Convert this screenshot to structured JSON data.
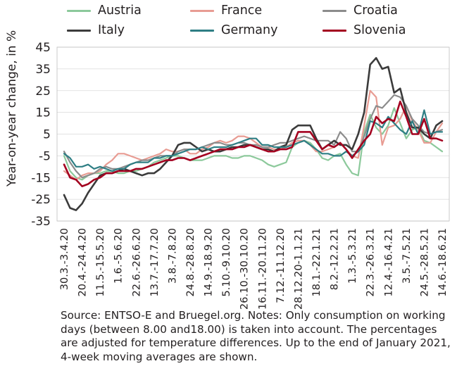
{
  "chart_data": {
    "type": "line",
    "ylabel": "Year-on-year change, in %",
    "ylim": [
      -35,
      45
    ],
    "yticks": [
      45,
      35,
      25,
      15,
      5,
      -5,
      -15,
      -25,
      -35
    ],
    "grid": true,
    "legend_position": "top",
    "categories": [
      "30.3.-3.4.20",
      "6.4.-10.4.20",
      "13.4.-17.4.20",
      "20.4.-24.4.20",
      "27.4.-1.5.20",
      "4.5.-8.5.20",
      "11.5.-15.5.20",
      "18.5.-22.5.20",
      "25.5.-29.5.20",
      "1.6.-5.6.20",
      "8.6.-12.6.20",
      "15.6.-19.6.20",
      "22.6.-26.6.20",
      "29.6.-3.7.20",
      "6.7.-10.7.20",
      "13.7.-17.7.20",
      "20.7.-24.7.20",
      "27.7.-31.7.20",
      "3.8.-7.8.20",
      "10.8.-14.8.20",
      "17.8.-21.8.20",
      "24.8.-28.8.20",
      "31.8.-4.9.20",
      "7.9.-11.9.20",
      "14.9.-18.9.20",
      "21.9.-25.9.20",
      "28.9.-2.10.20",
      "5.10.-9.10.20",
      "12.10.-16.10.20",
      "19.10.-23.10.20",
      "26.10.-30.10.20",
      "2.11.-6.11.20",
      "9.11.-13.11.20",
      "16.11.-20.11.20",
      "23.11.-27.11.20",
      "30.11.-4.12.20",
      "7.12.-11.12.20",
      "14.12.-18.12.20",
      "21.12.-25.12.20",
      "28.12.20-1.1.21",
      "4.1.-8.1.21",
      "11.1.-15.1.21",
      "18.1.-22.1.21",
      "25.1.-29.1.21",
      "1.2.-5.2.21",
      "8.2.-12.2.21",
      "15.2.-19.2.21",
      "22.2.-26.2.21",
      "1.3.-5.3.21",
      "8.3.-12.3.21",
      "15.3.-19.3.21",
      "22.3.-26.3.21",
      "29.3.-2.4.21",
      "5.4.-9.4.21",
      "12.4.-16.4.21",
      "19.4.-23.4.21",
      "26.4.-30.4.21",
      "3.5.-7.5.21",
      "10.5.-14.5.21",
      "17.5.-21.5.21",
      "24.5.-28.5.21",
      "31.5.-4.6.21",
      "7.6.-11.6.21",
      "14.6.-18.6.21"
    ],
    "tick_labels": [
      "30.3.-3.4.20",
      "20.4.-24.4.20",
      "11.5.-15.5.20",
      "1.6.-5.6.20",
      "22.6.-26.6.20",
      "13.7.-17.7.20",
      "3.8.-7.8.20",
      "24.8.-28.8.20",
      "14.9.-18.9.20",
      "5.10.-9.10.20",
      "26.10.-30.10.20",
      "16.11.-20.11.20",
      "7.12.-11.12.20",
      "28.12.20-1.1.21",
      "18.1.-22.1.21",
      "8.2.-12.2.21",
      "1.3.-5.3.21",
      "22.3.-26.3.21",
      "12.4.-16.4.21",
      "3.5.-7.5.21",
      "24.5.-28.5.21",
      "14.6.-18.6.21"
    ],
    "series": [
      {
        "name": "Austria",
        "color": "#8cc99b",
        "width": 2.2,
        "values": [
          -5,
          -12,
          -15,
          -16,
          -14,
          -13,
          -13,
          -12,
          -12,
          -13,
          -13,
          -12,
          -12,
          -11,
          -10,
          -8,
          -7,
          -6,
          -5,
          -5,
          -6,
          -7,
          -7,
          -7,
          -6,
          -5,
          -5,
          -5,
          -6,
          -6,
          -5,
          -5,
          -6,
          -7,
          -9,
          -10,
          -9,
          -8,
          -1,
          1,
          2,
          1,
          -2,
          -6,
          -7,
          -5,
          -4,
          -9,
          -13,
          -14,
          6,
          14,
          8,
          5,
          9,
          17,
          10,
          3,
          7,
          8,
          2,
          1,
          -1,
          -3
        ]
      },
      {
        "name": "France",
        "color": "#e89c93",
        "width": 2.2,
        "values": [
          -12,
          -14,
          -16,
          -14,
          -13,
          -13,
          -12,
          -9,
          -7,
          -4,
          -4,
          -5,
          -6,
          -7,
          -6,
          -5,
          -4,
          -2,
          -3,
          -3,
          -2,
          -4,
          -4,
          -2,
          -1,
          1,
          2,
          1,
          2,
          4,
          4,
          3,
          1,
          -1,
          -1,
          -2,
          -2,
          -1,
          1,
          2,
          2,
          0,
          -3,
          -3,
          -2,
          -1,
          1,
          -2,
          -5,
          -6,
          9,
          25,
          22,
          0,
          8,
          9,
          12,
          18,
          11,
          7,
          1,
          1,
          6,
          10
        ]
      },
      {
        "name": "Croatia",
        "color": "#8c8c8c",
        "width": 2.2,
        "values": [
          -3,
          -8,
          -12,
          -15,
          -14,
          -13,
          -11,
          -10,
          -11,
          -11,
          -10,
          -9,
          -8,
          -7,
          -7,
          -6,
          -5,
          -5,
          -5,
          -3,
          -2,
          -2,
          -2,
          -1,
          0,
          1,
          1,
          0,
          0,
          1,
          1,
          0,
          0,
          -1,
          -1,
          0,
          1,
          1,
          2,
          3,
          4,
          3,
          2,
          2,
          2,
          0,
          6,
          3,
          -3,
          -3,
          4,
          12,
          18,
          17,
          20,
          23,
          22,
          18,
          12,
          9,
          6,
          5,
          6,
          7
        ]
      },
      {
        "name": "Italy",
        "color": "#3b3b3b",
        "width": 2.6,
        "values": [
          -23,
          -29,
          -30,
          -27,
          -22,
          -18,
          -14,
          -13,
          -13,
          -12,
          -11,
          -12,
          -13,
          -14,
          -13,
          -13,
          -11,
          -8,
          -5,
          0,
          1,
          1,
          -1,
          -3,
          -2,
          -3,
          -3,
          -2,
          -1,
          -1,
          0,
          0,
          -1,
          -2,
          -2,
          -3,
          -1,
          0,
          7,
          9,
          9,
          9,
          3,
          -2,
          0,
          2,
          0,
          0,
          -2,
          5,
          15,
          37,
          40,
          35,
          36,
          24,
          26,
          15,
          8,
          8,
          5,
          3,
          9,
          11
        ]
      },
      {
        "name": "Germany",
        "color": "#2e7e84",
        "width": 2.2,
        "values": [
          -4,
          -6,
          -10,
          -10,
          -9,
          -11,
          -10,
          -11,
          -12,
          -11,
          -11,
          -9,
          -8,
          -8,
          -8,
          -6,
          -6,
          -5,
          -5,
          -4,
          -3,
          -2,
          -2,
          -1,
          -2,
          -1,
          -1,
          -1,
          0,
          1,
          2,
          3,
          3,
          0,
          0,
          -1,
          -1,
          -1,
          0,
          1,
          2,
          0,
          -2,
          -4,
          -4,
          -5,
          -5,
          -3,
          -5,
          -3,
          0,
          11,
          10,
          8,
          13,
          10,
          7,
          5,
          11,
          5,
          16,
          5,
          6,
          6
        ]
      },
      {
        "name": "Slovenia",
        "color": "#a3001f",
        "width": 2.6,
        "values": [
          -9,
          -15,
          -16,
          -19,
          -18,
          -16,
          -15,
          -13,
          -13,
          -12,
          -12,
          -12,
          -11,
          -11,
          -10,
          -9,
          -8,
          -7,
          -7,
          -6,
          -6,
          -7,
          -6,
          -5,
          -4,
          -3,
          -2,
          -2,
          -2,
          -1,
          -1,
          0,
          -1,
          -2,
          -3,
          -3,
          -2,
          -2,
          -1,
          6,
          6,
          6,
          2,
          -2,
          0,
          -1,
          1,
          -2,
          -6,
          -2,
          2,
          5,
          13,
          10,
          12,
          11,
          20,
          13,
          5,
          5,
          12,
          3,
          3,
          2
        ]
      }
    ],
    "source": "Source: ENTSO-E and Bruegel.org. Notes: Only consumption on working days (between 8.00 and18.00) is taken into account. The percentages are adjusted for temperature differences. Up to the end of January 2021, 4-week moving averages are shown."
  }
}
